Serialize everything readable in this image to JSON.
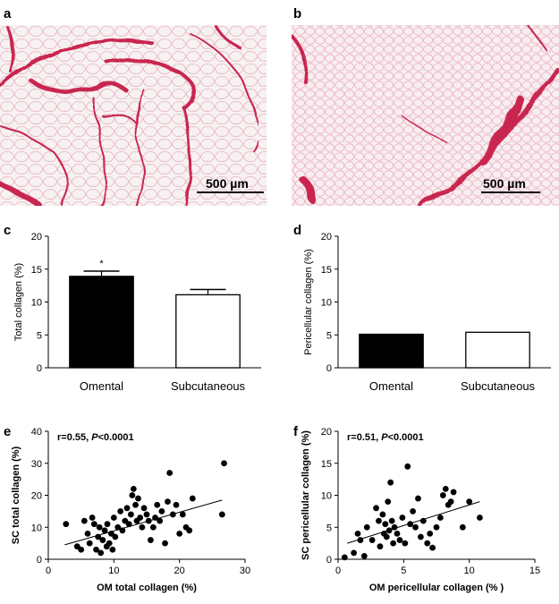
{
  "panels": {
    "a": "a",
    "b": "b",
    "c": "c",
    "d": "d",
    "e": "e",
    "f": "f"
  },
  "micrographs": {
    "a": {
      "scale_bar": "500 µm"
    },
    "b": {
      "scale_bar": "500 µm"
    }
  },
  "colors": {
    "bar_fill": "#000000",
    "stain": "#d23a63",
    "tissue_bg": "#f3e8ea"
  },
  "chart_data": [
    {
      "panel": "c",
      "type": "bar",
      "categories": [
        "Omental",
        "Subcutaneous"
      ],
      "values": [
        13.9,
        11.1
      ],
      "errors": [
        0.8,
        0.8
      ],
      "fills": [
        "#000000",
        "#ffffff"
      ],
      "annotations": [
        "*",
        ""
      ],
      "ylabel": "Total collagen (%)",
      "ylim": [
        0,
        20
      ],
      "yticks": [
        "0",
        "5",
        "10",
        "15",
        "20"
      ]
    },
    {
      "panel": "d",
      "type": "bar",
      "categories": [
        "Omental",
        "Subcutaneous"
      ],
      "values": [
        5.1,
        5.4
      ],
      "errors": [
        0,
        0
      ],
      "fills": [
        "#000000",
        "#ffffff"
      ],
      "ylabel": "Pericellular collagen (%)",
      "ylim": [
        0,
        20
      ],
      "yticks": [
        "0",
        "5",
        "10",
        "15",
        "20"
      ]
    },
    {
      "panel": "e",
      "type": "scatter",
      "xlabel": "OM total collagen (%)",
      "ylabel": "SC total collagen (%)",
      "xlim": [
        0,
        30
      ],
      "ylim": [
        0,
        40
      ],
      "xticks": [
        "0",
        "10",
        "20",
        "30"
      ],
      "yticks": [
        "0",
        "10",
        "20",
        "30",
        "40"
      ],
      "stat_r": "r=0.55, ",
      "stat_p": "P",
      "stat_rest": "<0.0001",
      "fit_line": {
        "x": [
          2.5,
          26.5
        ],
        "y": [
          4.5,
          18.5
        ]
      },
      "x": [
        2.7,
        4.4,
        5.0,
        5.5,
        6.0,
        6.3,
        6.7,
        7.0,
        7.3,
        7.6,
        7.8,
        8.0,
        8.3,
        8.6,
        8.9,
        9.0,
        9.3,
        9.6,
        9.8,
        10.0,
        10.2,
        10.6,
        11.0,
        11.3,
        11.7,
        12.0,
        12.3,
        12.6,
        12.8,
        13.0,
        13.3,
        13.5,
        13.7,
        14.0,
        14.3,
        14.6,
        15.0,
        15.3,
        15.6,
        16.0,
        16.3,
        16.6,
        17.0,
        17.3,
        17.8,
        18.2,
        18.5,
        19.0,
        19.5,
        20.0,
        20.5,
        21.0,
        21.5,
        22.0,
        26.5,
        26.8
      ],
      "y": [
        11.0,
        4.0,
        3.0,
        12.0,
        8.0,
        5.0,
        13.0,
        11.0,
        3.0,
        7.0,
        10.0,
        2.0,
        6.0,
        9.0,
        4.0,
        11.0,
        5.0,
        8.0,
        3.0,
        13.0,
        7.0,
        10.0,
        15.0,
        9.0,
        12.0,
        16.0,
        11.0,
        14.0,
        20.0,
        22.0,
        17.0,
        12.0,
        19.0,
        13.0,
        10.0,
        16.0,
        14.0,
        12.0,
        6.0,
        10.0,
        13.0,
        17.0,
        12.0,
        15.0,
        5.0,
        18.0,
        27.0,
        14.0,
        17.0,
        8.0,
        14.0,
        10.0,
        9.0,
        19.0,
        14.0,
        30.0
      ]
    },
    {
      "panel": "f",
      "type": "scatter",
      "xlabel": "OM pericellular collagen (% )",
      "ylabel": "SC pericellular collagen (%)",
      "xlim": [
        0,
        15
      ],
      "ylim": [
        0,
        20
      ],
      "xticks": [
        "0",
        "5",
        "10",
        "15"
      ],
      "yticks": [
        "0",
        "5",
        "10",
        "15",
        "20"
      ],
      "stat_r": "r=0.51, ",
      "stat_p": "P",
      "stat_rest": "<0.0001",
      "fit_line": {
        "x": [
          0.7,
          10.8
        ],
        "y": [
          2.5,
          9.0
        ]
      },
      "x": [
        0.5,
        1.2,
        1.5,
        1.7,
        2.0,
        2.2,
        2.6,
        2.9,
        3.1,
        3.2,
        3.4,
        3.5,
        3.6,
        3.7,
        3.8,
        3.9,
        4.0,
        4.1,
        4.2,
        4.3,
        4.5,
        4.7,
        4.9,
        5.1,
        5.3,
        5.5,
        5.7,
        5.9,
        6.1,
        6.3,
        6.5,
        6.8,
        7.0,
        7.2,
        7.5,
        7.8,
        8.0,
        8.2,
        8.4,
        8.6,
        8.8,
        9.5,
        10.0,
        10.8
      ],
      "y": [
        0.3,
        1.0,
        4.0,
        3.0,
        0.5,
        5.0,
        3.0,
        8.0,
        6.0,
        2.0,
        7.0,
        4.0,
        5.5,
        3.5,
        9.0,
        4.5,
        12.0,
        6.0,
        2.5,
        5.0,
        4.0,
        3.0,
        6.5,
        2.5,
        14.5,
        5.5,
        7.5,
        5.0,
        9.5,
        3.5,
        6.0,
        2.5,
        4.0,
        1.8,
        5.0,
        6.5,
        10.0,
        11.0,
        8.5,
        9.0,
        10.5,
        5.0,
        9.0,
        6.5
      ]
    }
  ]
}
